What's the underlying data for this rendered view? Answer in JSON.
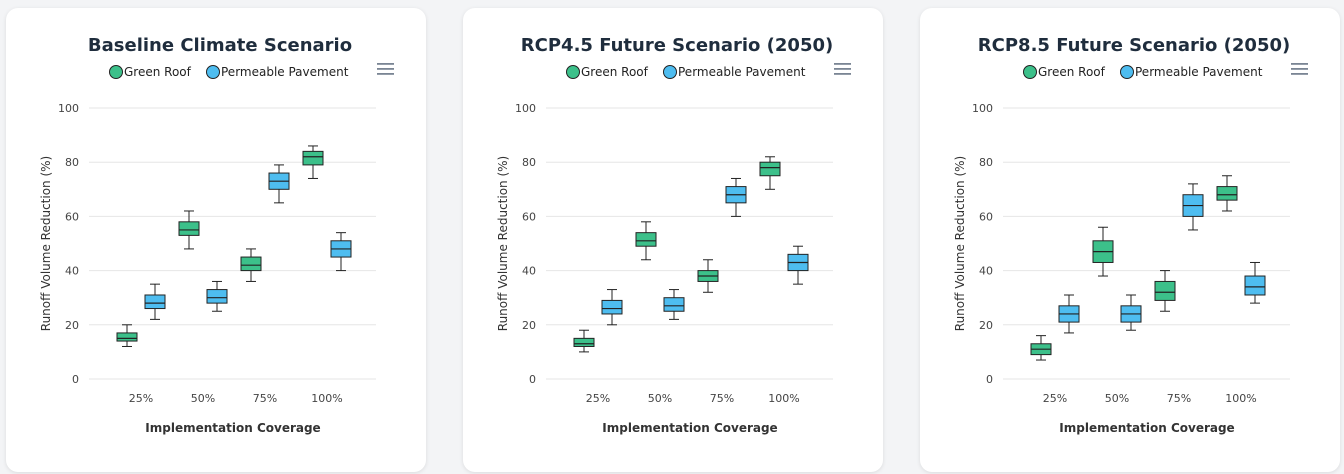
{
  "colors": {
    "green_roof": "#3cc08a",
    "permeable_pavement": "#4ebdf0",
    "whisker": "#222222",
    "grid": "#e6e6e6",
    "menu": "#7a8594"
  },
  "menu_icon": "hamburger-menu-icon",
  "chart_data": [
    {
      "type": "boxplot",
      "title": "Baseline Climate Scenario",
      "xlabel": "Implementation Coverage",
      "ylabel": "Runoff Volume Reduction (%)",
      "ylim": [
        0,
        100
      ],
      "yticks": [
        0,
        20,
        40,
        60,
        80,
        100
      ],
      "categories": [
        "25%",
        "50%",
        "75%",
        "100%"
      ],
      "legend": [
        "Green Roof",
        "Permeable Pavement"
      ],
      "legend_position": "top",
      "grid": true,
      "series": [
        {
          "name": "Green Roof",
          "boxes": [
            {
              "min": 12,
              "q1": 14,
              "median": 15,
              "q3": 17,
              "max": 20
            },
            {
              "min": 48,
              "q1": 53,
              "median": 55,
              "q3": 58,
              "max": 62
            },
            {
              "min": 36,
              "q1": 40,
              "median": 42,
              "q3": 45,
              "max": 48
            },
            {
              "min": 74,
              "q1": 79,
              "median": 82,
              "q3": 84,
              "max": 86
            }
          ]
        },
        {
          "name": "Permeable Pavement",
          "boxes": [
            {
              "min": 22,
              "q1": 26,
              "median": 28,
              "q3": 31,
              "max": 35
            },
            {
              "min": 25,
              "q1": 28,
              "median": 30,
              "q3": 33,
              "max": 36
            },
            {
              "min": 65,
              "q1": 70,
              "median": 73,
              "q3": 76,
              "max": 79
            },
            {
              "min": 40,
              "q1": 45,
              "median": 48,
              "q3": 51,
              "max": 54
            }
          ]
        }
      ]
    },
    {
      "type": "boxplot",
      "title": "RCP4.5 Future Scenario (2050)",
      "xlabel": "Implementation Coverage",
      "ylabel": "Runoff Volume Reduction (%)",
      "ylim": [
        0,
        100
      ],
      "yticks": [
        0,
        20,
        40,
        60,
        80,
        100
      ],
      "categories": [
        "25%",
        "50%",
        "75%",
        "100%"
      ],
      "legend": [
        "Green Roof",
        "Permeable Pavement"
      ],
      "legend_position": "top",
      "grid": true,
      "series": [
        {
          "name": "Green Roof",
          "boxes": [
            {
              "min": 10,
              "q1": 12,
              "median": 13,
              "q3": 15,
              "max": 18
            },
            {
              "min": 44,
              "q1": 49,
              "median": 51,
              "q3": 54,
              "max": 58
            },
            {
              "min": 32,
              "q1": 36,
              "median": 38,
              "q3": 40,
              "max": 44
            },
            {
              "min": 70,
              "q1": 75,
              "median": 78,
              "q3": 80,
              "max": 82
            }
          ]
        },
        {
          "name": "Permeable Pavement",
          "boxes": [
            {
              "min": 20,
              "q1": 24,
              "median": 26,
              "q3": 29,
              "max": 33
            },
            {
              "min": 22,
              "q1": 25,
              "median": 27,
              "q3": 30,
              "max": 33
            },
            {
              "min": 60,
              "q1": 65,
              "median": 68,
              "q3": 71,
              "max": 74
            },
            {
              "min": 35,
              "q1": 40,
              "median": 43,
              "q3": 46,
              "max": 49
            }
          ]
        }
      ]
    },
    {
      "type": "boxplot",
      "title": "RCP8.5 Future Scenario (2050)",
      "xlabel": "Implementation Coverage",
      "ylabel": "Runoff Volume Reduction (%)",
      "ylim": [
        0,
        100
      ],
      "yticks": [
        0,
        20,
        40,
        60,
        80,
        100
      ],
      "categories": [
        "25%",
        "50%",
        "75%",
        "100%"
      ],
      "legend": [
        "Green Roof",
        "Permeable Pavement"
      ],
      "legend_position": "top",
      "grid": true,
      "series": [
        {
          "name": "Green Roof",
          "boxes": [
            {
              "min": 7,
              "q1": 9,
              "median": 11,
              "q3": 13,
              "max": 16
            },
            {
              "min": 38,
              "q1": 43,
              "median": 47,
              "q3": 51,
              "max": 56
            },
            {
              "min": 25,
              "q1": 29,
              "median": 32,
              "q3": 36,
              "max": 40
            },
            {
              "min": 62,
              "q1": 66,
              "median": 68,
              "q3": 71,
              "max": 75
            }
          ]
        },
        {
          "name": "Permeable Pavement",
          "boxes": [
            {
              "min": 17,
              "q1": 21,
              "median": 24,
              "q3": 27,
              "max": 31
            },
            {
              "min": 18,
              "q1": 21,
              "median": 24,
              "q3": 27,
              "max": 31
            },
            {
              "min": 55,
              "q1": 60,
              "median": 64,
              "q3": 68,
              "max": 72
            },
            {
              "min": 28,
              "q1": 31,
              "median": 34,
              "q3": 38,
              "max": 43
            }
          ]
        }
      ]
    }
  ]
}
